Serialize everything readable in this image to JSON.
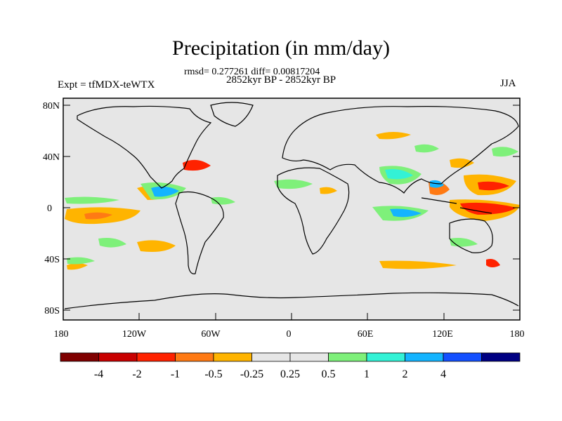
{
  "title": "Precipitation (in mm/day)",
  "stats": "rmsd= 0.277261 diff= 0.00817204",
  "period": "2852kyr BP - 2852kyr BP",
  "experiment": "Expt = tfMDX-teWTX",
  "season": "JJA",
  "map": {
    "background_color": "#e6e6e6",
    "lat_ticks": [
      "80N",
      "40N",
      "0",
      "40S",
      "80S"
    ],
    "lon_ticks": [
      "180",
      "120W",
      "60W",
      "0",
      "60E",
      "120E",
      "180"
    ]
  },
  "colorbar": {
    "colors": [
      "#7f0000",
      "#c80000",
      "#ff2200",
      "#ff7a14",
      "#ffb400",
      "#e6e6e6",
      "#e6e6e6",
      "#7ef07a",
      "#33f2d6",
      "#14b4ff",
      "#1450ff",
      "#000082"
    ],
    "labels": [
      "-4",
      "-2",
      "-1",
      "-0.5",
      "-0.25",
      "0.25",
      "0.5",
      "1",
      "2",
      "4"
    ]
  }
}
